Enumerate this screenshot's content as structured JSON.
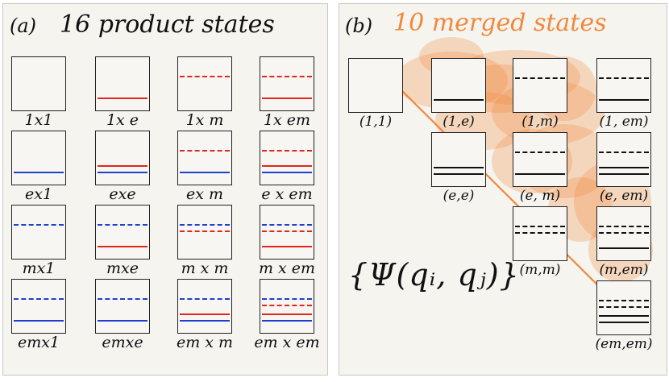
{
  "colors": {
    "electron": "#e0261d",
    "muon": "#1f3fd0",
    "merged": "#111111",
    "accent": "#f0883e",
    "box_fill": "#f7f6f2"
  },
  "panel_a": {
    "tag": "(a)",
    "title": "16 product states",
    "grid": [
      [
        {
          "label": "1x1",
          "lines": []
        },
        {
          "label": "1x e",
          "lines": [
            {
              "pos": "low",
              "style": "solid",
              "color": "electron"
            }
          ]
        },
        {
          "label": "1x m",
          "lines": [
            {
              "pos": "high",
              "style": "dashed",
              "color": "electron"
            }
          ]
        },
        {
          "label": "1x em",
          "lines": [
            {
              "pos": "high",
              "style": "dashed",
              "color": "electron"
            },
            {
              "pos": "low",
              "style": "solid",
              "color": "electron"
            }
          ]
        }
      ],
      [
        {
          "label": "ex1",
          "lines": [
            {
              "pos": "low",
              "style": "solid",
              "color": "muon"
            }
          ]
        },
        {
          "label": "exe",
          "lines": [
            {
              "pos": "low",
              "style": "solid",
              "color": "muon"
            },
            {
              "pos": "low2",
              "style": "solid",
              "color": "electron"
            }
          ]
        },
        {
          "label": "ex m",
          "lines": [
            {
              "pos": "high",
              "style": "dashed",
              "color": "electron"
            },
            {
              "pos": "low",
              "style": "solid",
              "color": "muon"
            }
          ]
        },
        {
          "label": "e x em",
          "lines": [
            {
              "pos": "high",
              "style": "dashed",
              "color": "electron"
            },
            {
              "pos": "low2",
              "style": "solid",
              "color": "electron"
            },
            {
              "pos": "low",
              "style": "solid",
              "color": "muon"
            }
          ]
        }
      ],
      [
        {
          "label": "mx1",
          "lines": [
            {
              "pos": "high",
              "style": "dashed",
              "color": "muon"
            }
          ]
        },
        {
          "label": "mxe",
          "lines": [
            {
              "pos": "high",
              "style": "dashed",
              "color": "muon"
            },
            {
              "pos": "low",
              "style": "solid",
              "color": "electron"
            }
          ]
        },
        {
          "label": "m x m",
          "lines": [
            {
              "pos": "high",
              "style": "dashed",
              "color": "muon"
            },
            {
              "pos": "high2",
              "style": "dashed",
              "color": "electron"
            }
          ]
        },
        {
          "label": "m x em",
          "lines": [
            {
              "pos": "high",
              "style": "dashed",
              "color": "muon"
            },
            {
              "pos": "high2",
              "style": "dashed",
              "color": "electron"
            },
            {
              "pos": "low",
              "style": "solid",
              "color": "electron"
            }
          ]
        }
      ],
      [
        {
          "label": "emx1",
          "lines": [
            {
              "pos": "high",
              "style": "dashed",
              "color": "muon"
            },
            {
              "pos": "low",
              "style": "solid",
              "color": "muon"
            }
          ]
        },
        {
          "label": "emxe",
          "lines": [
            {
              "pos": "high",
              "style": "dashed",
              "color": "muon"
            },
            {
              "pos": "low",
              "style": "solid",
              "color": "muon"
            }
          ]
        },
        {
          "label": "em x m",
          "lines": [
            {
              "pos": "high",
              "style": "dashed",
              "color": "muon"
            },
            {
              "pos": "low2",
              "style": "solid",
              "color": "electron"
            },
            {
              "pos": "low",
              "style": "solid",
              "color": "muon"
            }
          ]
        },
        {
          "label": "em x em",
          "lines": [
            {
              "pos": "high",
              "style": "dashed",
              "color": "muon"
            },
            {
              "pos": "high2",
              "style": "dashed",
              "color": "electron"
            },
            {
              "pos": "low2",
              "style": "solid",
              "color": "electron"
            },
            {
              "pos": "low",
              "style": "solid",
              "color": "muon"
            }
          ]
        }
      ]
    ]
  },
  "panel_b": {
    "tag": "(b)",
    "title": "10 merged states",
    "states": [
      {
        "row": 0,
        "col": 0,
        "label": "(1,1)",
        "lines": []
      },
      {
        "row": 0,
        "col": 1,
        "label": "(1,e)",
        "lines": [
          {
            "pos": "low",
            "style": "solid"
          }
        ]
      },
      {
        "row": 0,
        "col": 2,
        "label": "(1,m)",
        "lines": [
          {
            "pos": "high",
            "style": "dashed"
          }
        ]
      },
      {
        "row": 0,
        "col": 3,
        "label": "(1, em)",
        "lines": [
          {
            "pos": "high",
            "style": "dashed"
          },
          {
            "pos": "low",
            "style": "solid"
          }
        ]
      },
      {
        "row": 1,
        "col": 1,
        "label": "(e,e)",
        "lines": [
          {
            "pos": "low2",
            "style": "solid"
          },
          {
            "pos": "low",
            "style": "solid"
          }
        ]
      },
      {
        "row": 1,
        "col": 2,
        "label": "(e, m)",
        "lines": [
          {
            "pos": "high",
            "style": "dashed"
          },
          {
            "pos": "low",
            "style": "solid"
          }
        ]
      },
      {
        "row": 1,
        "col": 3,
        "label": "(e, em)",
        "lines": [
          {
            "pos": "high",
            "style": "dashed"
          },
          {
            "pos": "low2",
            "style": "solid"
          },
          {
            "pos": "low",
            "style": "solid"
          }
        ]
      },
      {
        "row": 2,
        "col": 2,
        "label": "(m,m)",
        "lines": [
          {
            "pos": "high",
            "style": "dashed"
          },
          {
            "pos": "high2",
            "style": "dashed"
          }
        ]
      },
      {
        "row": 2,
        "col": 3,
        "label": "(m,em)",
        "lines": [
          {
            "pos": "high",
            "style": "dashed"
          },
          {
            "pos": "high2",
            "style": "dashed"
          },
          {
            "pos": "low",
            "style": "solid"
          }
        ]
      },
      {
        "row": 3,
        "col": 3,
        "label": "(em,em)",
        "lines": [
          {
            "pos": "high",
            "style": "dashed"
          },
          {
            "pos": "high2",
            "style": "dashed"
          },
          {
            "pos": "low2",
            "style": "solid"
          },
          {
            "pos": "low",
            "style": "solid"
          }
        ]
      }
    ],
    "formula": "{Ψ(qᵢ, qⱼ)}"
  }
}
